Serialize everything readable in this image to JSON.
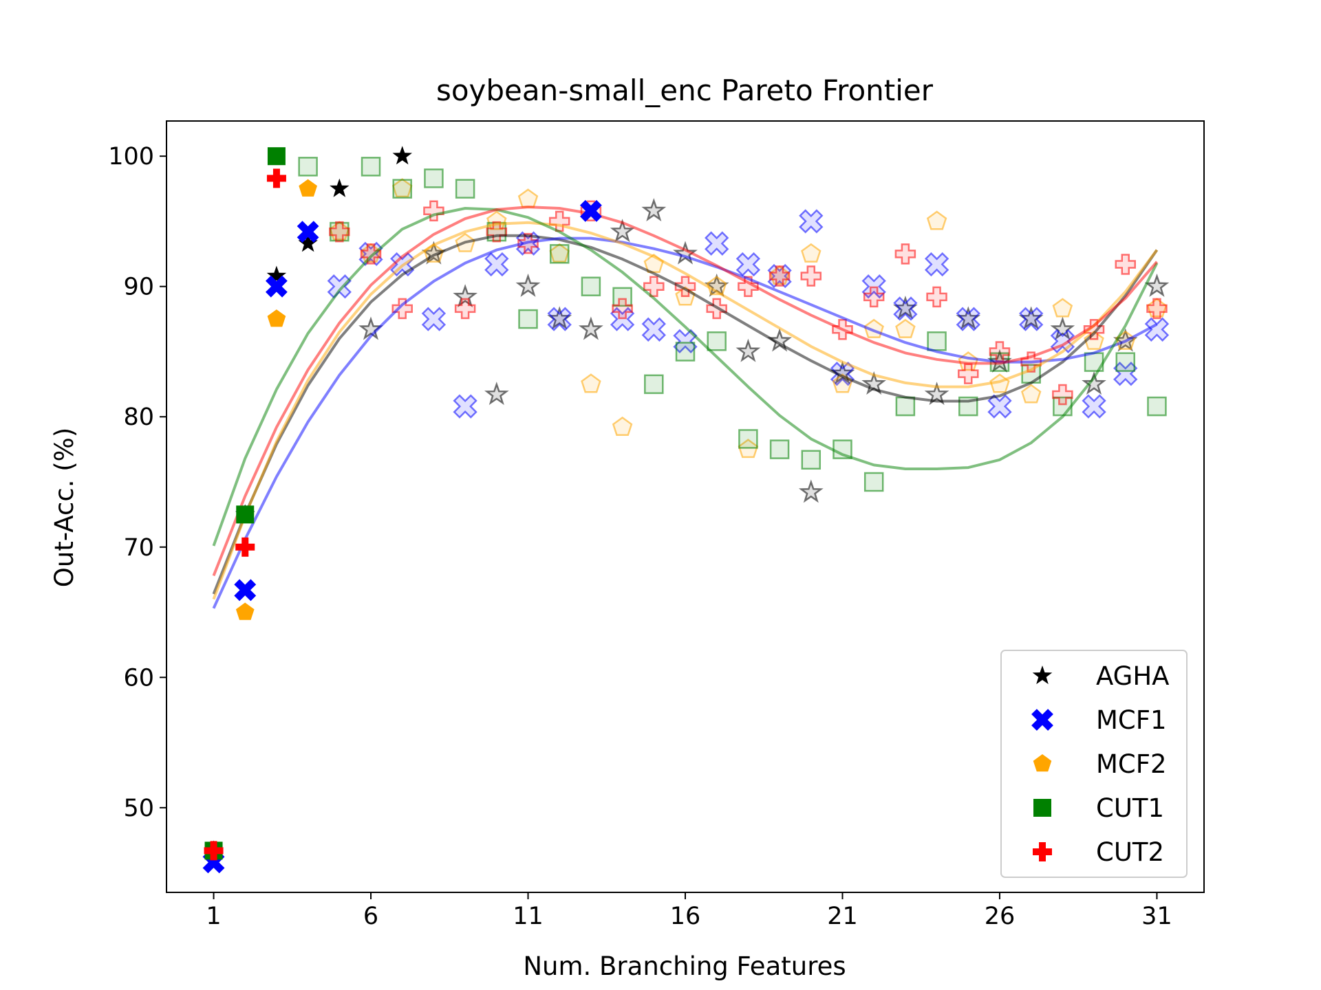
{
  "chart_data": {
    "type": "scatter",
    "title": "soybean-small_enc Pareto Frontier",
    "xlabel": "Num. Branching Features",
    "ylabel": "Out-Acc. (%)",
    "xlim": [
      -0.5,
      32.5
    ],
    "ylim": [
      43.5,
      102.7
    ],
    "xticks": [
      1,
      6,
      11,
      16,
      21,
      26,
      31
    ],
    "yticks": [
      50,
      60,
      70,
      80,
      90,
      100
    ],
    "legend_position": "lower right",
    "grid": false,
    "series": [
      {
        "name": "AGHA",
        "color": "#000000",
        "marker": "star",
        "frontier": [
          [
            1,
            46.7
          ],
          [
            2,
            72.5
          ],
          [
            3,
            90.8
          ],
          [
            4,
            93.3
          ],
          [
            5,
            97.5
          ],
          [
            7,
            100
          ]
        ],
        "points": [
          [
            6,
            86.7
          ],
          [
            8,
            92.5
          ],
          [
            9,
            89.2
          ],
          [
            10,
            81.7
          ],
          [
            11,
            90
          ],
          [
            12,
            87.5
          ],
          [
            13,
            86.7
          ],
          [
            14,
            94.2
          ],
          [
            15,
            95.8
          ],
          [
            16,
            92.5
          ],
          [
            17,
            90
          ],
          [
            18,
            85
          ],
          [
            19,
            85.8
          ],
          [
            20,
            74.2
          ],
          [
            21,
            83.3
          ],
          [
            22,
            82.5
          ],
          [
            23,
            88.3
          ],
          [
            24,
            81.7
          ],
          [
            25,
            87.5
          ],
          [
            26,
            84.2
          ],
          [
            27,
            87.5
          ],
          [
            28,
            86.7
          ],
          [
            29,
            82.5
          ],
          [
            30,
            85.8
          ],
          [
            31,
            90
          ]
        ],
        "fit": [
          [
            1,
            66.4
          ],
          [
            2,
            72.5
          ],
          [
            3,
            77.9
          ],
          [
            4,
            82.4
          ],
          [
            5,
            86.0
          ],
          [
            6,
            88.8
          ],
          [
            7,
            90.9
          ],
          [
            8,
            92.4
          ],
          [
            9,
            93.4
          ],
          [
            10,
            93.9
          ],
          [
            11,
            93.9
          ],
          [
            12,
            93.6
          ],
          [
            13,
            93.0
          ],
          [
            14,
            92.1
          ],
          [
            15,
            91.0
          ],
          [
            16,
            89.8
          ],
          [
            17,
            88.4
          ],
          [
            18,
            87.0
          ],
          [
            19,
            85.6
          ],
          [
            20,
            84.3
          ],
          [
            21,
            83.1
          ],
          [
            22,
            82.1
          ],
          [
            23,
            81.5
          ],
          [
            24,
            81.2
          ],
          [
            25,
            81.2
          ],
          [
            26,
            81.6
          ],
          [
            27,
            82.6
          ],
          [
            28,
            84.2
          ],
          [
            29,
            86.4
          ],
          [
            30,
            89.3
          ],
          [
            31,
            92.8
          ]
        ]
      },
      {
        "name": "MCF1",
        "color": "#0000ff",
        "marker": "x",
        "frontier": [
          [
            1,
            45.8
          ],
          [
            2,
            66.7
          ],
          [
            3,
            90
          ],
          [
            4,
            94.2
          ],
          [
            13,
            95.8
          ]
        ],
        "points": [
          [
            5,
            90
          ],
          [
            6,
            92.5
          ],
          [
            7,
            91.7
          ],
          [
            8,
            87.5
          ],
          [
            9,
            80.8
          ],
          [
            10,
            91.7
          ],
          [
            11,
            93.3
          ],
          [
            12,
            87.5
          ],
          [
            14,
            87.5
          ],
          [
            15,
            86.7
          ],
          [
            16,
            85.8
          ],
          [
            17,
            93.3
          ],
          [
            18,
            91.7
          ],
          [
            19,
            90.8
          ],
          [
            20,
            95
          ],
          [
            21,
            83.3
          ],
          [
            22,
            90
          ],
          [
            23,
            88.3
          ],
          [
            24,
            91.7
          ],
          [
            25,
            87.5
          ],
          [
            26,
            80.8
          ],
          [
            27,
            87.5
          ],
          [
            28,
            85.8
          ],
          [
            29,
            80.8
          ],
          [
            30,
            83.3
          ],
          [
            31,
            86.7
          ]
        ],
        "fit": [
          [
            1,
            65.3
          ],
          [
            2,
            70.6
          ],
          [
            3,
            75.4
          ],
          [
            4,
            79.6
          ],
          [
            5,
            83.2
          ],
          [
            6,
            86.2
          ],
          [
            7,
            88.6
          ],
          [
            8,
            90.4
          ],
          [
            9,
            91.8
          ],
          [
            10,
            92.8
          ],
          [
            11,
            93.4
          ],
          [
            12,
            93.7
          ],
          [
            13,
            93.7
          ],
          [
            14,
            93.4
          ],
          [
            15,
            92.9
          ],
          [
            16,
            92.3
          ],
          [
            17,
            91.5
          ],
          [
            18,
            90.6
          ],
          [
            19,
            89.6
          ],
          [
            20,
            88.6
          ],
          [
            21,
            87.6
          ],
          [
            22,
            86.6
          ],
          [
            23,
            85.7
          ],
          [
            24,
            85.0
          ],
          [
            25,
            84.5
          ],
          [
            26,
            84.2
          ],
          [
            27,
            84.2
          ],
          [
            28,
            84.4
          ],
          [
            29,
            84.9
          ],
          [
            30,
            85.8
          ],
          [
            31,
            87.1
          ]
        ]
      },
      {
        "name": "MCF2",
        "color": "#ffa500",
        "marker": "pentagon",
        "frontier": [
          [
            1,
            46.7
          ],
          [
            2,
            65
          ],
          [
            3,
            87.5
          ],
          [
            4,
            97.5
          ]
        ],
        "points": [
          [
            5,
            94.2
          ],
          [
            6,
            92.5
          ],
          [
            7,
            97.5
          ],
          [
            8,
            92.5
          ],
          [
            9,
            93.3
          ],
          [
            10,
            95
          ],
          [
            11,
            96.7
          ],
          [
            12,
            92.5
          ],
          [
            13,
            82.5
          ],
          [
            14,
            79.2
          ],
          [
            15,
            91.7
          ],
          [
            16,
            89.2
          ],
          [
            17,
            90
          ],
          [
            18,
            77.5
          ],
          [
            19,
            90.8
          ],
          [
            20,
            92.5
          ],
          [
            21,
            82.5
          ],
          [
            22,
            86.7
          ],
          [
            23,
            86.7
          ],
          [
            24,
            95
          ],
          [
            25,
            84.2
          ],
          [
            26,
            82.5
          ],
          [
            27,
            81.7
          ],
          [
            28,
            88.3
          ],
          [
            29,
            85.8
          ],
          [
            30,
            85.8
          ],
          [
            31,
            88.3
          ]
        ],
        "fit": [
          [
            1,
            66.0
          ],
          [
            2,
            72.4
          ],
          [
            3,
            78.1
          ],
          [
            4,
            82.8
          ],
          [
            5,
            86.5
          ],
          [
            6,
            89.4
          ],
          [
            7,
            91.6
          ],
          [
            8,
            93.2
          ],
          [
            9,
            94.2
          ],
          [
            10,
            94.8
          ],
          [
            11,
            94.9
          ],
          [
            12,
            94.7
          ],
          [
            13,
            94.1
          ],
          [
            14,
            93.3
          ],
          [
            15,
            92.3
          ],
          [
            16,
            91.0
          ],
          [
            17,
            89.6
          ],
          [
            18,
            88.2
          ],
          [
            19,
            86.8
          ],
          [
            20,
            85.4
          ],
          [
            21,
            84.2
          ],
          [
            22,
            83.2
          ],
          [
            23,
            82.6
          ],
          [
            24,
            82.3
          ],
          [
            25,
            82.3
          ],
          [
            26,
            82.7
          ],
          [
            27,
            83.6
          ],
          [
            28,
            85.0
          ],
          [
            29,
            87.0
          ],
          [
            30,
            89.6
          ],
          [
            31,
            92.8
          ]
        ]
      },
      {
        "name": "CUT1",
        "color": "#008000",
        "marker": "square",
        "frontier": [
          [
            1,
            46.7
          ],
          [
            2,
            72.5
          ],
          [
            3,
            100
          ]
        ],
        "points": [
          [
            4,
            99.2
          ],
          [
            5,
            94.2
          ],
          [
            6,
            99.2
          ],
          [
            7,
            97.5
          ],
          [
            8,
            98.3
          ],
          [
            9,
            97.5
          ],
          [
            10,
            94.2
          ],
          [
            11,
            87.5
          ],
          [
            12,
            92.5
          ],
          [
            13,
            90
          ],
          [
            14,
            89.2
          ],
          [
            15,
            82.5
          ],
          [
            16,
            85
          ],
          [
            17,
            85.8
          ],
          [
            18,
            78.3
          ],
          [
            19,
            77.5
          ],
          [
            20,
            76.7
          ],
          [
            21,
            77.5
          ],
          [
            22,
            75
          ],
          [
            23,
            80.8
          ],
          [
            24,
            85.8
          ],
          [
            25,
            80.8
          ],
          [
            26,
            84.2
          ],
          [
            27,
            83.3
          ],
          [
            28,
            80.8
          ],
          [
            29,
            84.2
          ],
          [
            30,
            84.2
          ],
          [
            31,
            80.8
          ]
        ],
        "fit": [
          [
            1,
            70.1
          ],
          [
            2,
            76.8
          ],
          [
            3,
            82.1
          ],
          [
            4,
            86.4
          ],
          [
            5,
            89.7
          ],
          [
            6,
            92.3
          ],
          [
            7,
            94.4
          ],
          [
            8,
            95.5
          ],
          [
            9,
            96.0
          ],
          [
            10,
            95.9
          ],
          [
            11,
            95.3
          ],
          [
            12,
            94.2
          ],
          [
            13,
            92.8
          ],
          [
            14,
            91.1
          ],
          [
            15,
            89.1
          ],
          [
            16,
            86.9
          ],
          [
            17,
            84.6
          ],
          [
            18,
            82.3
          ],
          [
            19,
            80.1
          ],
          [
            20,
            78.3
          ],
          [
            21,
            77.1
          ],
          [
            22,
            76.3
          ],
          [
            23,
            76.0
          ],
          [
            24,
            76.0
          ],
          [
            25,
            76.1
          ],
          [
            26,
            76.7
          ],
          [
            27,
            78.0
          ],
          [
            28,
            80.0
          ],
          [
            29,
            83.0
          ],
          [
            30,
            87.0
          ],
          [
            31,
            91.8
          ]
        ]
      },
      {
        "name": "CUT2",
        "color": "#ff0000",
        "marker": "plus",
        "frontier": [
          [
            1,
            46.7
          ],
          [
            2,
            70
          ],
          [
            3,
            98.3
          ]
        ],
        "points": [
          [
            5,
            94.2
          ],
          [
            6,
            92.5
          ],
          [
            7,
            88.3
          ],
          [
            8,
            95.8
          ],
          [
            9,
            88.3
          ],
          [
            10,
            94.2
          ],
          [
            11,
            93.3
          ],
          [
            12,
            95
          ],
          [
            13,
            95.8
          ],
          [
            14,
            88.3
          ],
          [
            15,
            90
          ],
          [
            16,
            90
          ],
          [
            17,
            88.3
          ],
          [
            18,
            90
          ],
          [
            19,
            90.8
          ],
          [
            20,
            90.8
          ],
          [
            21,
            86.7
          ],
          [
            22,
            89.2
          ],
          [
            23,
            92.5
          ],
          [
            24,
            89.2
          ],
          [
            25,
            83.3
          ],
          [
            26,
            85
          ],
          [
            27,
            84.2
          ],
          [
            28,
            81.7
          ],
          [
            29,
            86.7
          ],
          [
            30,
            91.7
          ],
          [
            31,
            88.3
          ]
        ],
        "fit": [
          [
            1,
            67.8
          ],
          [
            2,
            73.9
          ],
          [
            3,
            79.2
          ],
          [
            4,
            83.6
          ],
          [
            5,
            87.2
          ],
          [
            6,
            90.1
          ],
          [
            7,
            92.3
          ],
          [
            8,
            94.0
          ],
          [
            9,
            95.2
          ],
          [
            10,
            95.9
          ],
          [
            11,
            96.1
          ],
          [
            12,
            96.0
          ],
          [
            13,
            95.6
          ],
          [
            14,
            94.9
          ],
          [
            15,
            93.9
          ],
          [
            16,
            92.8
          ],
          [
            17,
            91.6
          ],
          [
            18,
            90.3
          ],
          [
            19,
            89.0
          ],
          [
            20,
            87.8
          ],
          [
            21,
            86.7
          ],
          [
            22,
            85.7
          ],
          [
            23,
            84.9
          ],
          [
            24,
            84.4
          ],
          [
            25,
            84.1
          ],
          [
            26,
            84.1
          ],
          [
            27,
            84.6
          ],
          [
            28,
            85.5
          ],
          [
            29,
            87.0
          ],
          [
            30,
            89.1
          ],
          [
            31,
            91.9
          ]
        ]
      }
    ]
  }
}
